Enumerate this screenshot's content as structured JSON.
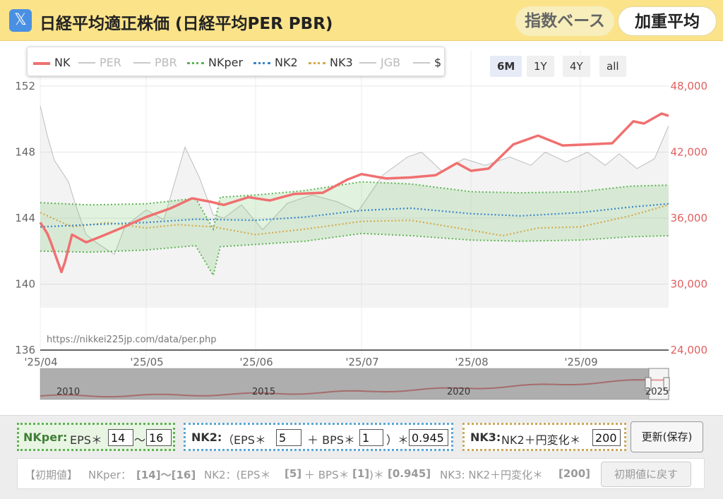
{
  "header": {
    "x_icon": "x-logo-icon",
    "title": "日経平均適正株価 (日経平均PER PBR)",
    "btn_index": "指数ベース",
    "btn_weighted": "加重平均"
  },
  "legend": [
    {
      "label": "NK",
      "color": "#f07070",
      "style": "solid",
      "on": true
    },
    {
      "label": "PER",
      "color": "#c8c8c8",
      "style": "solid",
      "on": false
    },
    {
      "label": "PBR",
      "color": "#c8c8c8",
      "style": "solid",
      "on": false
    },
    {
      "label": "NKper",
      "color": "#5fb354",
      "style": "dotted",
      "on": true
    },
    {
      "label": "NK2",
      "color": "#3a86c8",
      "style": "dotted",
      "on": true
    },
    {
      "label": "NK3",
      "color": "#d4a94a",
      "style": "dotted",
      "on": true
    },
    {
      "label": "JGB",
      "color": "#c8c8c8",
      "style": "solid",
      "on": false
    },
    {
      "label": "$",
      "color": "#c8c8c8",
      "style": "solid",
      "on": true
    }
  ],
  "range_buttons": [
    {
      "label": "6M",
      "active": true
    },
    {
      "label": "1Y",
      "active": false
    },
    {
      "label": "4Y",
      "active": false
    },
    {
      "label": "all",
      "active": false
    }
  ],
  "watermark": "https://nikkei225jp.com/data/per.php",
  "chart_data": {
    "type": "line",
    "x_ticks": [
      "'25/04",
      "'25/05",
      "'25/06",
      "'25/07",
      "'25/08",
      "'25/09"
    ],
    "y_left": {
      "ticks": [
        136,
        140,
        144,
        148,
        152
      ],
      "range": [
        136,
        152
      ]
    },
    "y_right": {
      "ticks": [
        "24,000",
        "30,000",
        "36,000",
        "42,000",
        "48,000"
      ],
      "range": [
        24000,
        48000
      ]
    },
    "date_range": [
      "2025-04-01",
      "2025-09-26"
    ],
    "series": [
      {
        "name": "NK",
        "axis": "right",
        "color": "#f07070",
        "x": [
          "2025-04-01",
          "2025-04-03",
          "2025-04-04",
          "2025-04-07",
          "2025-04-08",
          "2025-04-10",
          "2025-04-14",
          "2025-04-18",
          "2025-04-24",
          "2025-05-01",
          "2025-05-08",
          "2025-05-14",
          "2025-05-19",
          "2025-05-23",
          "2025-05-30",
          "2025-06-05",
          "2025-06-12",
          "2025-06-20",
          "2025-06-27",
          "2025-07-01",
          "2025-07-08",
          "2025-07-15",
          "2025-07-22",
          "2025-07-28",
          "2025-08-01",
          "2025-08-06",
          "2025-08-13",
          "2025-08-20",
          "2025-08-27",
          "2025-09-03",
          "2025-09-10",
          "2025-09-16",
          "2025-09-19",
          "2025-09-24",
          "2025-09-26"
        ],
        "y": [
          35600,
          34600,
          33800,
          31100,
          32000,
          34500,
          33800,
          34300,
          35100,
          36100,
          36900,
          37800,
          37500,
          37200,
          37900,
          37600,
          38200,
          38300,
          39500,
          40000,
          39600,
          39700,
          39900,
          41000,
          40300,
          40500,
          42700,
          43500,
          42600,
          42700,
          42800,
          44800,
          44600,
          45500,
          45300
        ]
      },
      {
        "name": "NKper",
        "axis": "right",
        "color": "#5fb354",
        "x": [
          "2025-04-01",
          "2025-04-15",
          "2025-05-01",
          "2025-05-15",
          "2025-05-20",
          "2025-05-22",
          "2025-06-01",
          "2025-06-15",
          "2025-07-01",
          "2025-07-15",
          "2025-08-01",
          "2025-08-15",
          "2025-09-01",
          "2025-09-15",
          "2025-09-26"
        ],
        "y_high": [
          37400,
          37200,
          37300,
          37800,
          35000,
          37900,
          38100,
          38500,
          39300,
          39100,
          38400,
          38300,
          38400,
          38900,
          39000
        ],
        "y_low": [
          33000,
          32900,
          33100,
          33500,
          30800,
          33400,
          33600,
          33900,
          34600,
          34400,
          34000,
          33900,
          34000,
          34300,
          34400
        ]
      },
      {
        "name": "NK2",
        "axis": "right",
        "color": "#3a86c8",
        "x": [
          "2025-04-01",
          "2025-04-15",
          "2025-05-01",
          "2025-05-15",
          "2025-06-01",
          "2025-06-15",
          "2025-07-01",
          "2025-07-15",
          "2025-08-01",
          "2025-08-15",
          "2025-09-01",
          "2025-09-15",
          "2025-09-26"
        ],
        "y": [
          35200,
          35400,
          35600,
          35900,
          35800,
          36100,
          36700,
          36900,
          36400,
          36200,
          36500,
          37000,
          37300
        ]
      },
      {
        "name": "NK3",
        "axis": "right",
        "color": "#d4a94a",
        "x": [
          "2025-04-01",
          "2025-04-10",
          "2025-04-20",
          "2025-05-01",
          "2025-05-10",
          "2025-05-20",
          "2025-06-01",
          "2025-06-15",
          "2025-07-01",
          "2025-07-15",
          "2025-08-01",
          "2025-08-10",
          "2025-08-20",
          "2025-09-01",
          "2025-09-15",
          "2025-09-26"
        ],
        "y": [
          36500,
          35200,
          35600,
          35100,
          35400,
          35200,
          34500,
          35000,
          35700,
          35800,
          34900,
          34400,
          35100,
          35200,
          36200,
          37200
        ]
      },
      {
        "name": "$",
        "axis": "left",
        "color": "#bdbdbd",
        "x": [
          "2025-04-01",
          "2025-04-03",
          "2025-04-05",
          "2025-04-09",
          "2025-04-11",
          "2025-04-14",
          "2025-04-17",
          "2025-04-22",
          "2025-04-25",
          "2025-05-01",
          "2025-05-06",
          "2025-05-12",
          "2025-05-16",
          "2025-05-20",
          "2025-05-23",
          "2025-05-28",
          "2025-06-03",
          "2025-06-10",
          "2025-06-17",
          "2025-06-24",
          "2025-06-30",
          "2025-07-07",
          "2025-07-14",
          "2025-07-18",
          "2025-07-24",
          "2025-07-30",
          "2025-08-05",
          "2025-08-12",
          "2025-08-18",
          "2025-08-22",
          "2025-08-28",
          "2025-09-03",
          "2025-09-08",
          "2025-09-12",
          "2025-09-17",
          "2025-09-22",
          "2025-09-26"
        ],
        "y": [
          150.8,
          149.0,
          147.5,
          146.2,
          144.8,
          143.0,
          142.5,
          141.8,
          143.5,
          144.5,
          143.9,
          148.3,
          146.5,
          144.2,
          144.0,
          144.8,
          143.3,
          144.9,
          145.4,
          145.0,
          144.4,
          146.6,
          147.7,
          148.0,
          146.8,
          147.6,
          147.2,
          147.7,
          147.2,
          148.0,
          147.4,
          148.0,
          147.2,
          147.9,
          147.0,
          147.6,
          149.6
        ]
      }
    ]
  },
  "navigator": {
    "labels": [
      "2010",
      "2015",
      "2020",
      "2025"
    ]
  },
  "panel": {
    "nkper_label": "NKper:",
    "nkper_eps": "EPS＊",
    "nkper_from": "14",
    "nkper_sep": "〜",
    "nkper_to": "16",
    "nk2_label": "NK2:",
    "nk2_open": "（EPS＊",
    "nk2_eps": "5",
    "nk2_plus": "＋ BPS＊",
    "nk2_bps": "1",
    "nk2_close": "）＊",
    "nk2_mult": "0.945",
    "nk3_label": "NK3:",
    "nk3_text": "NK2＋円変化＊",
    "nk3_val": "200",
    "update_btn": "更新(保存)",
    "defaults_title": "【初期値】",
    "def_nkper": "NKper：",
    "def_nkper_val": "[14]〜[16]",
    "def_nk2": "NK2：(EPS＊",
    "def_nk2_eps": "[5]",
    "def_nk2_plus": "＋ BPS＊",
    "def_nk2_bps": "[1]",
    "def_nk2_close": ")＊",
    "def_nk2_mult": "[0.945]",
    "def_nk3": "NK3: NK2＋円変化＊",
    "def_nk3_val": "[200]",
    "reset_btn": "初期値に戻す"
  }
}
